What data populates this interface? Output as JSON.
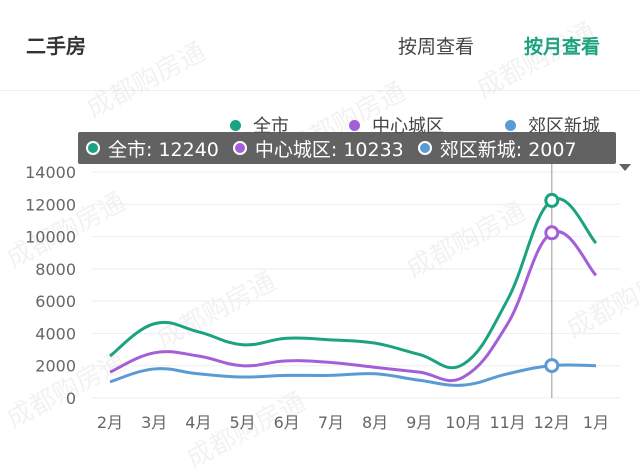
{
  "header": {
    "title": "二手房",
    "toggle_week": "按周查看",
    "toggle_month": "按月查看"
  },
  "colors": {
    "all": "#1aa37e",
    "center": "#a45fd8",
    "suburb": "#5b9bd5",
    "active_toggle": "#1aa37e"
  },
  "watermark": "成都购房通",
  "tooltip": {
    "items": [
      {
        "label": "全市: 12240",
        "color": "#1aa37e"
      },
      {
        "label": "中心城区: 10233",
        "color": "#a45fd8"
      },
      {
        "label": "郊区新城: 2007",
        "color": "#5b9bd5"
      }
    ]
  },
  "chart_data": {
    "type": "line",
    "categories": [
      "2月",
      "3月",
      "4月",
      "5月",
      "6月",
      "7月",
      "8月",
      "9月",
      "10月",
      "11月",
      "12月",
      "1月"
    ],
    "series": [
      {
        "name": "全市",
        "color": "#1aa37e",
        "values": [
          2600,
          4600,
          4100,
          3300,
          3700,
          3600,
          3400,
          2700,
          2100,
          6100,
          12240,
          9600
        ]
      },
      {
        "name": "中心城区",
        "color": "#a45fd8",
        "values": [
          1600,
          2800,
          2600,
          2000,
          2300,
          2200,
          1900,
          1600,
          1300,
          4600,
          10233,
          7600
        ]
      },
      {
        "name": "郊区新城",
        "color": "#5b9bd5",
        "values": [
          1000,
          1800,
          1500,
          1300,
          1400,
          1400,
          1500,
          1100,
          800,
          1500,
          2007,
          2000
        ]
      }
    ],
    "yticks": [
      0,
      2000,
      4000,
      6000,
      8000,
      10000,
      12000,
      14000
    ],
    "ylim": [
      0,
      14000
    ],
    "highlight_index": 10,
    "grid": true,
    "legend_position": "top"
  }
}
